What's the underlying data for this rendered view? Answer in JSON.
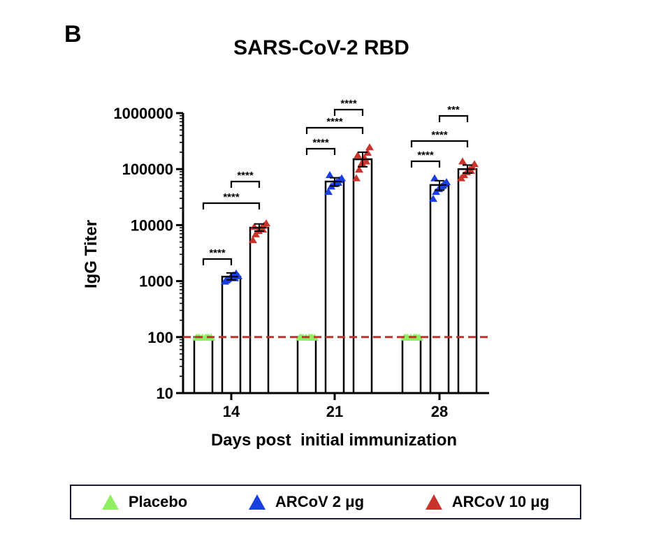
{
  "panel_label": "B",
  "chart_data": {
    "type": "bar",
    "title": "SARS-CoV-2 RBD",
    "xlabel": "Days post  initial immunization",
    "ylabel": "IgG  Titer",
    "yscale": "log",
    "ylim": [
      10,
      1000000
    ],
    "yticks": [
      10,
      100,
      1000,
      10000,
      100000,
      1000000
    ],
    "ytick_labels": [
      "10",
      "100",
      "1000",
      "10000",
      "100000",
      "1000000"
    ],
    "categories": [
      "14",
      "21",
      "28"
    ],
    "series": [
      {
        "name": "Placebo",
        "color": "#90ee60",
        "values": [
          100,
          100,
          100
        ],
        "points": [
          [
            100,
            100,
            100,
            100,
            100,
            100,
            100,
            100
          ],
          [
            100,
            100,
            100,
            100,
            100,
            100,
            100,
            100
          ],
          [
            100,
            100,
            100,
            100,
            100,
            100,
            100,
            100
          ]
        ]
      },
      {
        "name": "ARCoV 2 μg",
        "color": "#1a3fe0",
        "values": [
          1200,
          60000,
          52000
        ],
        "errors": [
          [
            1050,
            1400
          ],
          [
            50000,
            70000
          ],
          [
            42000,
            62000
          ]
        ],
        "points": [
          [
            1000,
            1100,
            1200,
            1300,
            1400,
            1250,
            1050,
            1150
          ],
          [
            40000,
            50000,
            55000,
            60000,
            65000,
            70000,
            80000,
            58000
          ],
          [
            30000,
            40000,
            45000,
            50000,
            55000,
            60000,
            70000,
            52000
          ]
        ]
      },
      {
        "name": "ARCoV 10 μg",
        "color": "#c8342c",
        "values": [
          9000,
          150000,
          100000
        ],
        "errors": [
          [
            7800,
            10500
          ],
          [
            110000,
            200000
          ],
          [
            85000,
            118000
          ]
        ],
        "points": [
          [
            5500,
            7000,
            8000,
            9000,
            10000,
            11000,
            9500,
            8500
          ],
          [
            70000,
            100000,
            130000,
            160000,
            200000,
            250000,
            180000,
            140000
          ],
          [
            70000,
            80000,
            90000,
            100000,
            110000,
            125000,
            140000,
            95000
          ]
        ]
      }
    ],
    "reference_line": {
      "value": 100,
      "style": "dashed",
      "color": "#c0322c"
    },
    "significance": [
      {
        "group": "14",
        "from": "Placebo",
        "to": "ARCoV 2 μg",
        "label": "****"
      },
      {
        "group": "14",
        "from": "Placebo",
        "to": "ARCoV 10 μg",
        "label": "****"
      },
      {
        "group": "14",
        "from": "ARCoV 2 μg",
        "to": "ARCoV 10 μg",
        "label": "****"
      },
      {
        "group": "21",
        "from": "Placebo",
        "to": "ARCoV 2 μg",
        "label": "****"
      },
      {
        "group": "21",
        "from": "Placebo",
        "to": "ARCoV 10 μg",
        "label": "****"
      },
      {
        "group": "21",
        "from": "ARCoV 2 μg",
        "to": "ARCoV 10 μg",
        "label": "****"
      },
      {
        "group": "28",
        "from": "Placebo",
        "to": "ARCoV 2 μg",
        "label": "****"
      },
      {
        "group": "28",
        "from": "Placebo",
        "to": "ARCoV 10 μg",
        "label": "****"
      },
      {
        "group": "28",
        "from": "ARCoV 2 μg",
        "to": "ARCoV 10 μg",
        "label": "***"
      }
    ],
    "legend": {
      "placement": "bottom",
      "entries": [
        "Placebo",
        "ARCoV 2 μg",
        "ARCoV 10 μg"
      ]
    }
  }
}
